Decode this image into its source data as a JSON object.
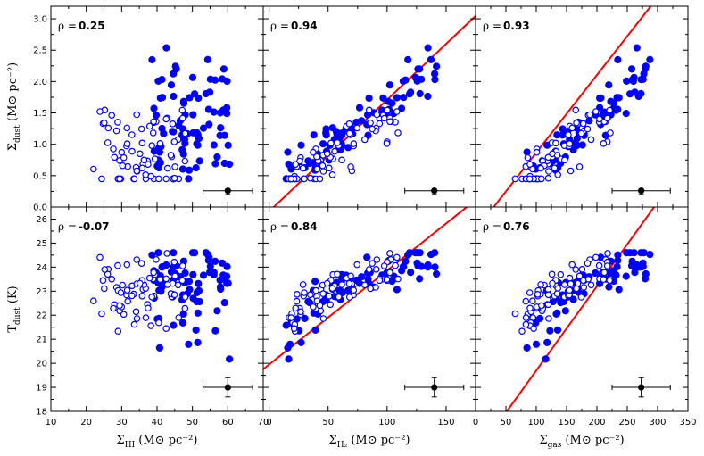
{
  "chart_data": {
    "type": "scatter",
    "title": "",
    "rows": [
      {
        "id": "sigma_dust",
        "ylabel": "Σ",
        "ylabel_sub": "dust",
        "ylabel_unit": " (M⊙ pc⁻²)",
        "ylim": [
          0.0,
          3.2
        ],
        "yticks": [
          "0.0",
          "0.5",
          "1.0",
          "1.5",
          "2.0",
          "2.5",
          "3.0"
        ]
      },
      {
        "id": "t_dust",
        "ylabel": "T",
        "ylabel_sub": "dust",
        "ylabel_unit": " (K)",
        "ylim": [
          18,
          26.5
        ],
        "yticks": [
          "18",
          "19",
          "20",
          "21",
          "22",
          "23",
          "24",
          "25",
          "26"
        ]
      }
    ],
    "columns": [
      {
        "id": "hi",
        "xlabel": "Σ",
        "xlabel_sub": "HI",
        "xlabel_unit": " (M⊙ pc⁻²)",
        "xlim": [
          10,
          70
        ],
        "xticks": [
          "10",
          "20",
          "30",
          "40",
          "50",
          "60",
          "70"
        ]
      },
      {
        "id": "h2",
        "xlabel": "Σ",
        "xlabel_sub": "H₂",
        "xlabel_unit": " (M⊙ pc⁻²)",
        "xlim": [
          -5,
          175
        ],
        "xticks": [
          "0",
          "50",
          "100",
          "150"
        ]
      },
      {
        "id": "gas",
        "xlabel": "Σ",
        "xlabel_sub": "gas",
        "xlabel_unit": " (M⊙ pc⁻²)",
        "xlim": [
          0,
          350
        ],
        "xticks": [
          "0",
          "50",
          "100",
          "150",
          "200",
          "250",
          "300",
          "350"
        ]
      }
    ],
    "panels": [
      {
        "row": 0,
        "col": 0,
        "rho_label": "ρ =",
        "rho_value": "0.25",
        "fit": null,
        "errorbar": {
          "x": 60,
          "y": 0.26,
          "xerr": 7,
          "yerr": 0.06
        },
        "seed": 11,
        "shape": "hi_sd"
      },
      {
        "row": 0,
        "col": 1,
        "rho_label": "ρ =",
        "rho_value": "0.94",
        "fit": {
          "slope": 0.0178,
          "intercept": -0.07
        },
        "errorbar": {
          "x": 140,
          "y": 0.26,
          "xerr": 25,
          "yerr": 0.06
        },
        "seed": 23,
        "shape": "h2_sd"
      },
      {
        "row": 0,
        "col": 2,
        "rho_label": "ρ =",
        "rho_value": "0.93",
        "fit": {
          "slope": 0.01237,
          "intercept": -0.37
        },
        "errorbar": {
          "x": 273,
          "y": 0.26,
          "xerr": 48,
          "yerr": 0.06
        },
        "seed": 37,
        "shape": "gas_sd"
      },
      {
        "row": 1,
        "col": 0,
        "rho_label": "ρ =",
        "rho_value": "-0.07",
        "fit": null,
        "errorbar": {
          "x": 60,
          "y": 19.0,
          "xerr": 7,
          "yerr": 0.4
        },
        "seed": 41,
        "shape": "hi_t"
      },
      {
        "row": 1,
        "col": 1,
        "rho_label": "ρ =",
        "rho_value": "0.84",
        "fit": {
          "slope": 0.0391,
          "intercept": 19.95
        },
        "errorbar": {
          "x": 140,
          "y": 19.0,
          "xerr": 25,
          "yerr": 0.4
        },
        "seed": 53,
        "shape": "h2_t"
      },
      {
        "row": 1,
        "col": 2,
        "rho_label": "ρ =",
        "rho_value": "0.76",
        "fit": {
          "slope": 0.035,
          "intercept": 16.2
        },
        "errorbar": {
          "x": 273,
          "y": 19.0,
          "xerr": 48,
          "yerr": 0.4
        },
        "seed": 67,
        "shape": "gas_t"
      }
    ],
    "series": [
      {
        "name": "filled",
        "marker": "filled-circle",
        "color": "#0000ff"
      },
      {
        "name": "open",
        "marker": "open-circle",
        "color": "#0000ff"
      }
    ],
    "colors": {
      "points": "#0000ff",
      "fit": "#ff0000",
      "errorbar": "#000000"
    }
  }
}
